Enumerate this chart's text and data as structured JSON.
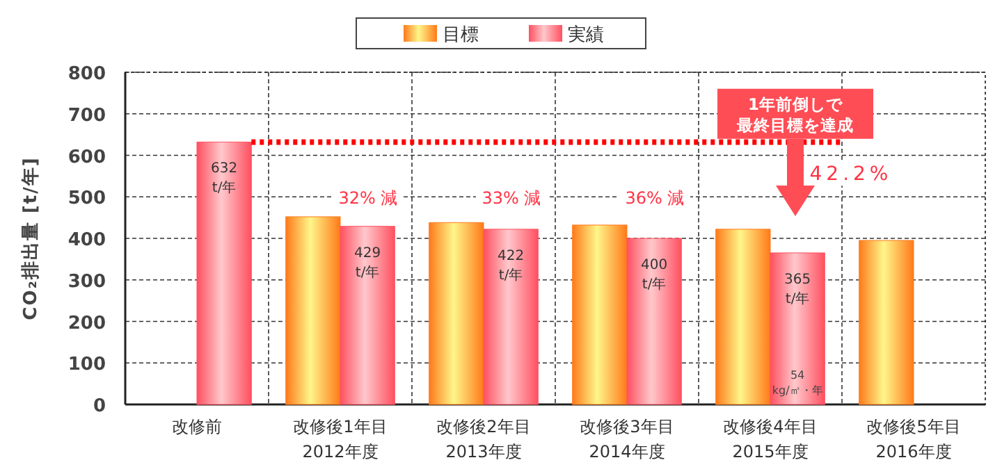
{
  "chart_data": {
    "type": "bar",
    "ylabel": "CO₂排出量 [t/年]",
    "categories": [
      "改修前",
      "改修後1年目\n2012年度",
      "改修後2年目\n2013年度",
      "改修後3年目\n2014年度",
      "改修後4年目\n2015年度",
      "改修後5年目\n2016年度"
    ],
    "series": [
      {
        "name": "目標",
        "color": "#ff7a1a",
        "values": [
          null,
          452,
          438,
          432,
          422,
          395
        ]
      },
      {
        "name": "実績",
        "color": "#ff5060",
        "values": [
          632,
          429,
          422,
          400,
          365,
          null
        ],
        "value_labels": [
          "632\nt/年",
          "429\nt/年",
          "422\nt/年",
          "400\nt/年",
          "365\nt/年",
          null
        ]
      }
    ],
    "ylim": [
      0,
      800
    ],
    "yticks": [
      0,
      100,
      200,
      300,
      400,
      500,
      600,
      700,
      800
    ],
    "grid": true,
    "legend": "top",
    "ref_lines": [
      {
        "axis": "y",
        "value": 632,
        "color": "#ff0000",
        "line_style": "dotted"
      }
    ],
    "annotations": [
      "32% 減",
      "33% 減",
      "36% 減",
      "42.2%",
      "1年前倒しで最終目標を達成",
      "54\nkg/㎡・年"
    ]
  }
}
